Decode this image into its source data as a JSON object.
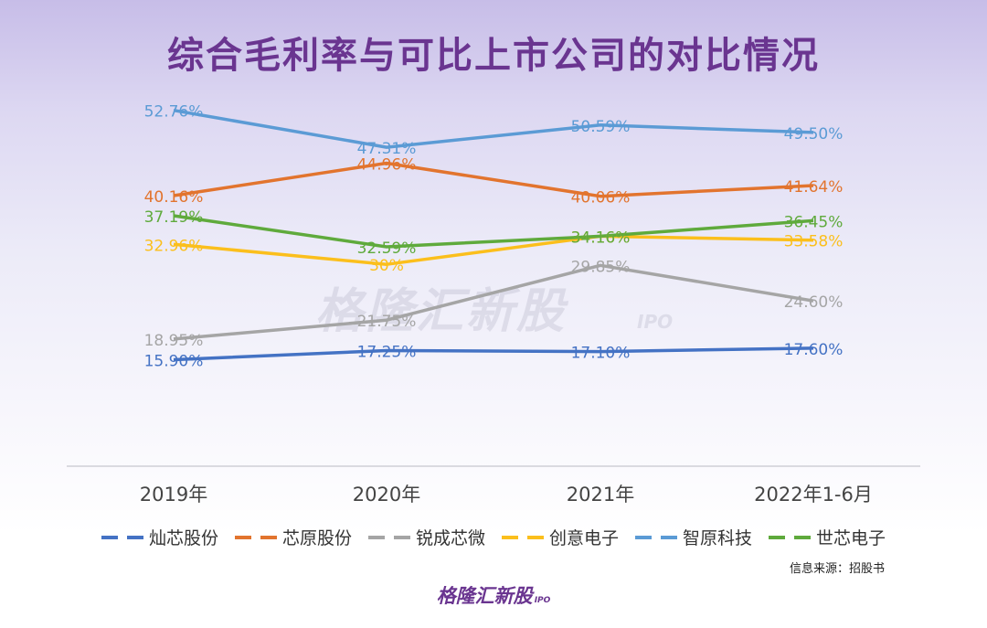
{
  "title": "综合毛利率与可比上市公司的对比情况",
  "source": "信息来源：招股书",
  "watermark": "格隆汇新股",
  "watermark_sub": "IPO",
  "brand": "格隆汇新股",
  "brand_sub": "IPO",
  "chart_data": {
    "type": "line",
    "title": "综合毛利率与可比上市公司的对比情况",
    "categories": [
      "2019年",
      "2020年",
      "2021年",
      "2022年1-6月"
    ],
    "ylim": [
      10,
      55
    ],
    "grid": false,
    "legend_position": "bottom",
    "series": [
      {
        "name": "灿芯股份",
        "color": "#4472c4",
        "values": [
          15.9,
          17.25,
          17.1,
          17.6
        ],
        "labels": [
          "15.90%",
          "17.25%",
          "17.10%",
          "17.60%"
        ]
      },
      {
        "name": "芯原股份",
        "color": "#e2742e",
        "values": [
          40.16,
          44.96,
          40.06,
          41.64
        ],
        "labels": [
          "40.16%",
          "44.96%",
          "40.06%",
          "41.64%"
        ]
      },
      {
        "name": "锐成芯微",
        "color": "#a5a5a5",
        "values": [
          18.95,
          21.75,
          29.85,
          24.6
        ],
        "labels": [
          "18.95%",
          "21.75%",
          "29.85%",
          "24.60%"
        ]
      },
      {
        "name": "创意电子",
        "color": "#fbbf1c",
        "values": [
          32.96,
          30.0,
          34.16,
          33.58
        ],
        "labels": [
          "32.96%",
          "30%",
          "34.16%",
          "33.58%"
        ]
      },
      {
        "name": "智原科技",
        "color": "#5b9bd5",
        "values": [
          52.76,
          47.31,
          50.59,
          49.5
        ],
        "labels": [
          "52.76%",
          "47.31%",
          "50.59%",
          "49.50%"
        ]
      },
      {
        "name": "世芯电子",
        "color": "#5faa3c",
        "values": [
          37.19,
          32.59,
          34.16,
          36.45
        ],
        "labels": [
          "37.19%",
          "32.59%",
          "34.16%",
          "36.45%"
        ]
      }
    ]
  }
}
